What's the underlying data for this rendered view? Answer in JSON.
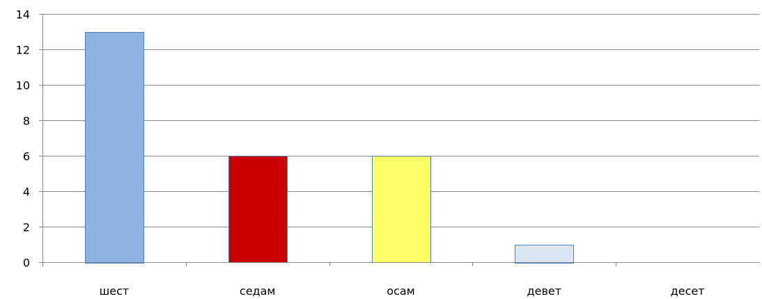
{
  "chart_data": {
    "type": "bar",
    "categories": [
      "шест",
      "седам",
      "осам",
      "девет",
      "десет"
    ],
    "values": [
      13,
      6,
      6,
      1,
      0
    ],
    "bar_colors": [
      "#8DB3E2",
      "#CC0000",
      "#FFFF66",
      "#DCE6F2",
      "#DCE6F2"
    ],
    "bar_stroke": "#4F81BD",
    "title": "",
    "xlabel": "",
    "ylabel": "",
    "ylim": [
      0,
      14
    ],
    "yticks": [
      0,
      2,
      4,
      6,
      8,
      10,
      12,
      14
    ],
    "ytick_labels": [
      "0",
      "2",
      "4",
      "6",
      "8",
      "10",
      "12",
      "14"
    ],
    "grid": true,
    "grid_color": "#868686",
    "legend": "none"
  }
}
